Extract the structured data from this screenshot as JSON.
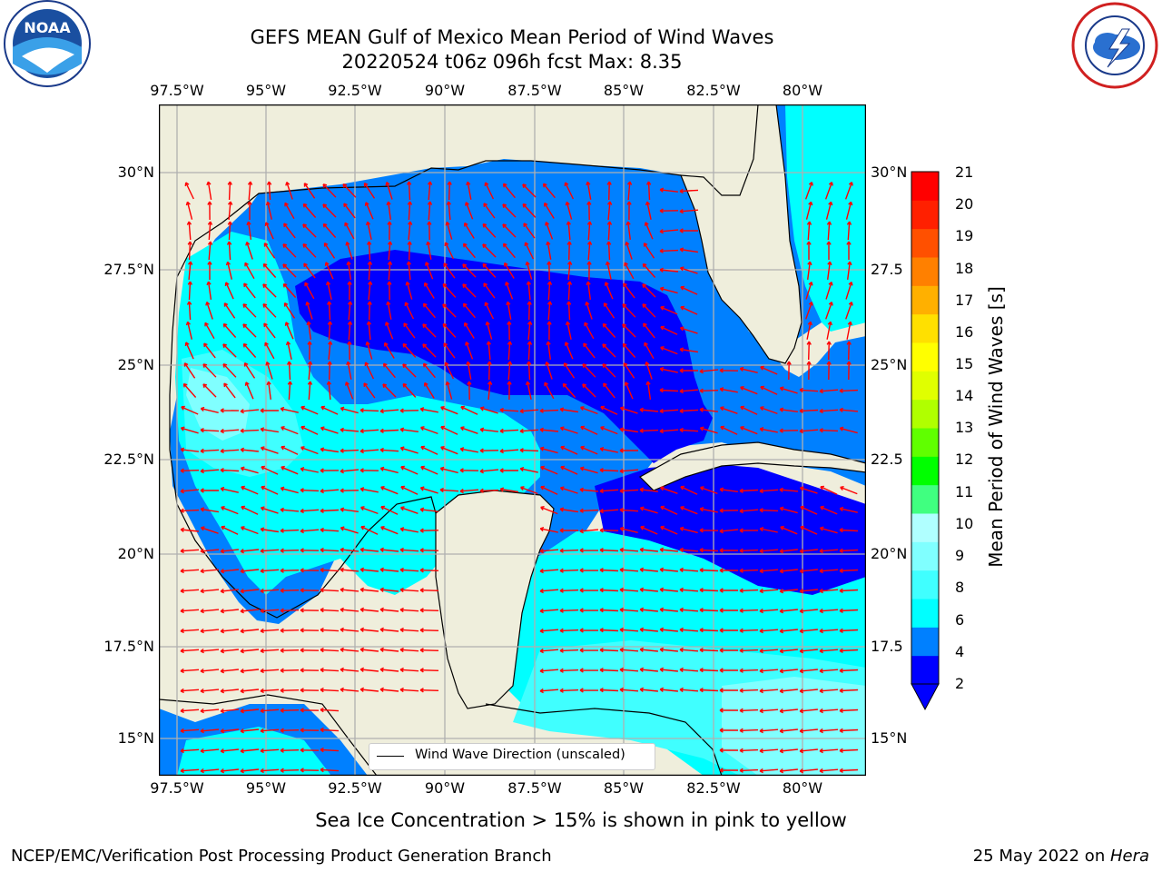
{
  "title_line1": "GEFS MEAN Gulf of Mexico Mean Period of Wind Waves",
  "title_line2": "20220524 t06z 096h fcst   Max: 8.35",
  "lon_labels": [
    "97.5°W",
    "95°W",
    "92.5°W",
    "90°W",
    "87.5°W",
    "85°W",
    "82.5°W",
    "80°W"
  ],
  "lat_labels_left": [
    "30°N",
    "27.5°N",
    "25°N",
    "22.5°N",
    "20°N",
    "17.5°N",
    "15°N"
  ],
  "lat_labels_right": [
    "30°N",
    "27.5",
    "25°N",
    "22.5",
    "20°N",
    "17.5",
    "15°N"
  ],
  "legend_label": "Wind Wave Direction (unscaled)",
  "colorbar": {
    "label": "Mean Period of Wind Waves [s]",
    "ticks": [
      "21",
      "20",
      "19",
      "18",
      "17",
      "16",
      "15",
      "14",
      "13",
      "12",
      "11",
      "10",
      "9",
      "8",
      "6",
      "4",
      "2"
    ],
    "colors": [
      "#0000ff",
      "#0080ff",
      "#00ffff",
      "#40ffff",
      "#80ffff",
      "#b0ffff",
      "#40ff80",
      "#00ff00",
      "#60ff00",
      "#b0ff00",
      "#e0ff00",
      "#ffff00",
      "#ffe000",
      "#ffb000",
      "#ff8000",
      "#ff5000",
      "#ff2000",
      "#ff0000"
    ]
  },
  "ice_note": "Sea Ice Concentration > 15% is shown in pink to yellow",
  "footer_left": "NCEP/EMC/Verification Post Processing Product Generation Branch",
  "footer_right_date": "25 May 2022 on ",
  "footer_right_machine": "Hera",
  "logos": {
    "left": "noaa-logo",
    "right": "nws-logo"
  },
  "map_colors": {
    "land": "#efeedc",
    "coast": "#000000",
    "arrow": "#ff0000",
    "grid": "#b0b0b0"
  }
}
